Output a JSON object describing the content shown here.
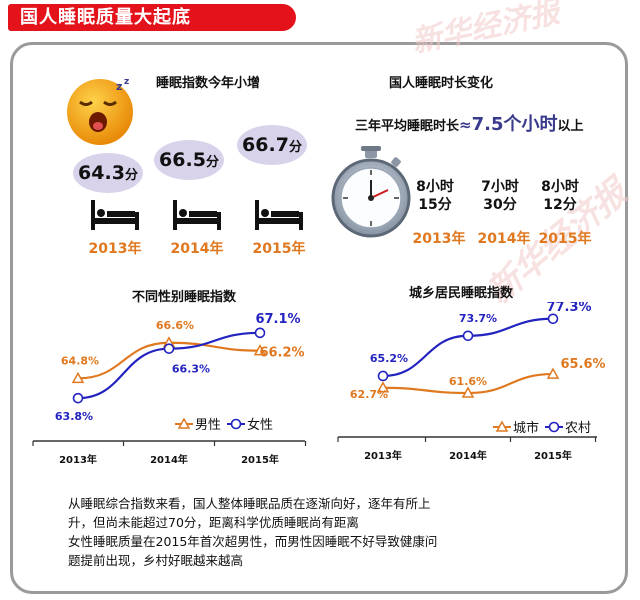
{
  "banner_title": "国人睡眠质量大起底",
  "watermark": "新华经济报",
  "index_section": {
    "title": "睡眠指数今年小增",
    "items": [
      {
        "year": "2013年",
        "value": "64.3",
        "unit": "分"
      },
      {
        "year": "2014年",
        "value": "66.5",
        "unit": "分"
      },
      {
        "year": "2015年",
        "value": "66.7",
        "unit": "分"
      }
    ]
  },
  "duration_section": {
    "title": "国人睡眠时长变化",
    "avg_prefix": "三年平均睡眠时长",
    "avg_approx": "≈",
    "avg_value": "7.5个小时",
    "avg_suffix": "以上",
    "items": [
      {
        "year": "2013年",
        "hours": "8小时",
        "minutes": "15分"
      },
      {
        "year": "2014年",
        "hours": "7小时",
        "minutes": "30分"
      },
      {
        "year": "2015年",
        "hours": "8小时",
        "minutes": "12分"
      }
    ]
  },
  "colors": {
    "orange": "#e07820",
    "blue": "#2323c0",
    "red": "#e4131b",
    "oval": "#d8d2ea"
  },
  "chart_data": [
    {
      "type": "line",
      "title": "不同性别睡眠指数",
      "categories": [
        "2013年",
        "2014年",
        "2015年"
      ],
      "series": [
        {
          "name": "男性",
          "values": [
            64.8,
            66.6,
            66.2
          ],
          "labels": [
            "64.8%",
            "66.6%",
            "66.2%"
          ],
          "marker": "triangle",
          "color": "#e07820"
        },
        {
          "name": "女性",
          "values": [
            63.8,
            66.3,
            67.1
          ],
          "labels": [
            "63.8%",
            "66.3%",
            "67.1%"
          ],
          "marker": "circle",
          "color": "#2323c0"
        }
      ],
      "ylim": [
        63.0,
        67.8
      ],
      "legend": "bottom-right"
    },
    {
      "type": "line",
      "title": "城乡居民睡眠指数",
      "categories": [
        "2013年",
        "2014年",
        "2015年"
      ],
      "series": [
        {
          "name": "城市",
          "values": [
            62.7,
            61.6,
            65.6
          ],
          "labels": [
            "62.7%",
            "61.6%",
            "65.6%"
          ],
          "marker": "triangle",
          "color": "#e07820"
        },
        {
          "name": "农村",
          "values": [
            65.2,
            73.7,
            77.3
          ],
          "labels": [
            "65.2%",
            "73.7%",
            "77.3%"
          ],
          "marker": "circle",
          "color": "#2323c0"
        }
      ],
      "ylim": [
        58.0,
        80.0
      ],
      "legend": "bottom-right"
    }
  ],
  "summary": [
    "从睡眠综合指数来看，国人整体睡眠品质在逐渐向好，逐年有所上",
    "升，但尚未能超过70分，距离科学优质睡眠尚有距离",
    "女性睡眠质量在2015年首次超男性，而男性因睡眠不好导致健康问",
    "题提前出现，乡村好眠越来越高"
  ]
}
